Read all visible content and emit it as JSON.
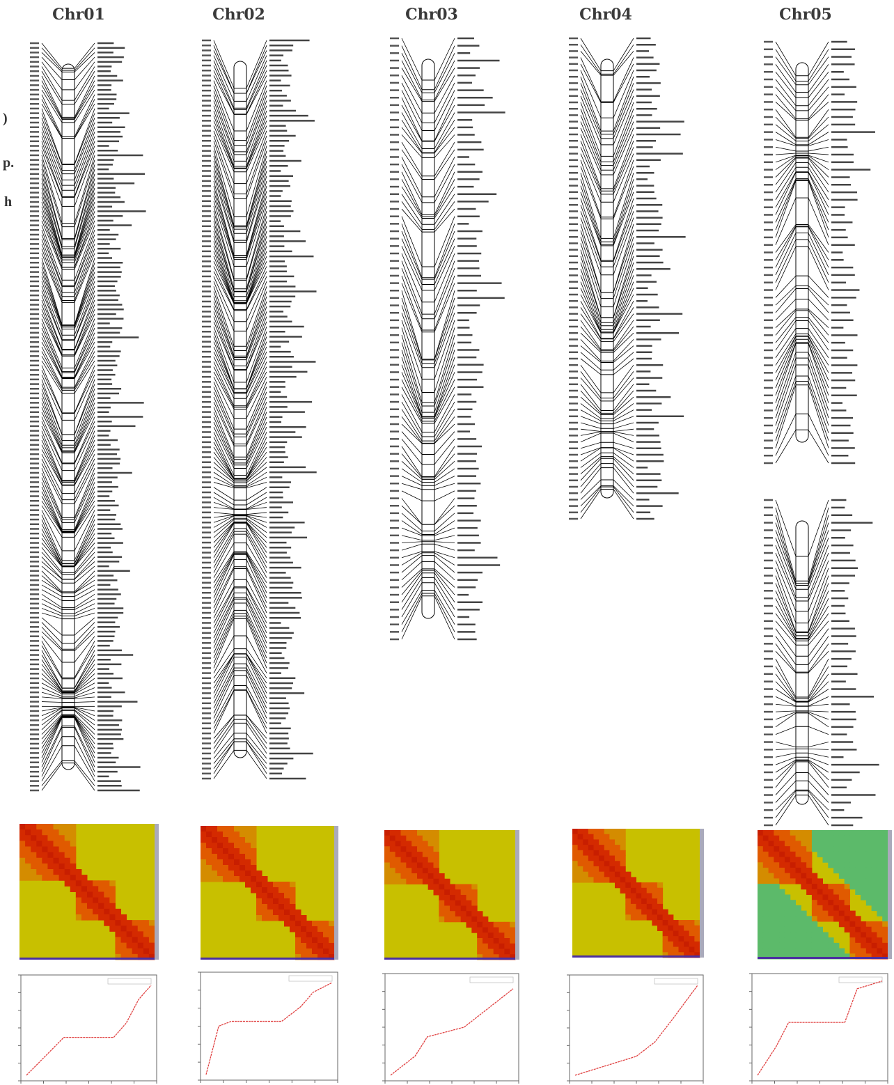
{
  "panels": [
    {
      "title": "Chr01"
    },
    {
      "title": "Chr02"
    },
    {
      "title": "Chr03"
    },
    {
      "title": "Chr04"
    },
    {
      "title": "Chr05"
    }
  ],
  "edge_fragments": [
    ")",
    "p.",
    "h"
  ]
}
